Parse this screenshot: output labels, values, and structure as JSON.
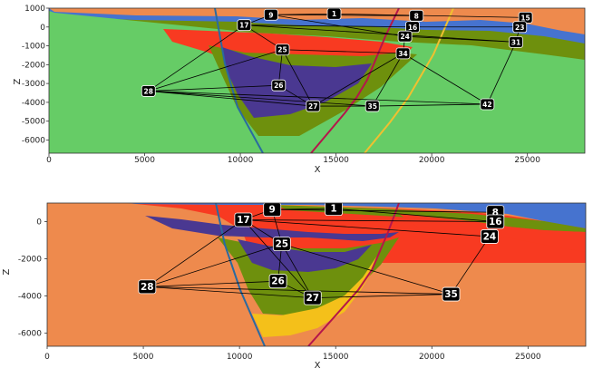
{
  "chart_data": [
    {
      "type": "other",
      "title": "",
      "xlabel": "X",
      "ylabel": "Z",
      "xlim": [
        0,
        28000
      ],
      "ylim": [
        -6700,
        1000
      ],
      "x_ticks": [
        "0",
        "5000",
        "10000",
        "15000",
        "20000",
        "25000"
      ],
      "y_ticks": [
        "1000",
        "0",
        "-1000",
        "-2000",
        "-3000",
        "-4000",
        "-5000",
        "-6000"
      ],
      "colors": {
        "background": "#ee8a4d",
        "blue": "#4673cf",
        "green": "#66cc66",
        "red": "#f83a21",
        "purple": "#4a3891",
        "olive": "#6e900d",
        "yellow": "#f4c01a",
        "fault_blue": "#2a6aa0",
        "fault_crimson": "#b5154b",
        "fault_yellow": "#f0c030"
      },
      "nodes": [
        {
          "id": "1",
          "x": 14900,
          "y": 700
        },
        {
          "id": "8",
          "x": 19200,
          "y": 600
        },
        {
          "id": "9",
          "x": 11600,
          "y": 650
        },
        {
          "id": "15",
          "x": 24900,
          "y": 500
        },
        {
          "id": "16",
          "x": 19000,
          "y": 0
        },
        {
          "id": "17",
          "x": 10200,
          "y": 100
        },
        {
          "id": "23",
          "x": 24600,
          "y": 0
        },
        {
          "id": "24",
          "x": 18600,
          "y": -500
        },
        {
          "id": "25",
          "x": 12200,
          "y": -1200
        },
        {
          "id": "26",
          "x": 12000,
          "y": -3100
        },
        {
          "id": "27",
          "x": 13800,
          "y": -4200
        },
        {
          "id": "28",
          "x": 5200,
          "y": -3400
        },
        {
          "id": "31",
          "x": 24400,
          "y": -800
        },
        {
          "id": "34",
          "x": 18500,
          "y": -1400
        },
        {
          "id": "35",
          "x": 16900,
          "y": -4200
        },
        {
          "id": "42",
          "x": 22900,
          "y": -4100
        }
      ],
      "edges": [
        [
          "28",
          "17"
        ],
        [
          "28",
          "25"
        ],
        [
          "28",
          "26"
        ],
        [
          "28",
          "27"
        ],
        [
          "28",
          "35"
        ],
        [
          "28",
          "42"
        ],
        [
          "17",
          "9"
        ],
        [
          "17",
          "16"
        ],
        [
          "17",
          "25"
        ],
        [
          "17",
          "31"
        ],
        [
          "9",
          "1"
        ],
        [
          "9",
          "8"
        ],
        [
          "9",
          "24"
        ],
        [
          "1",
          "15"
        ],
        [
          "8",
          "16"
        ],
        [
          "16",
          "23"
        ],
        [
          "16",
          "24"
        ],
        [
          "24",
          "34"
        ],
        [
          "24",
          "31"
        ],
        [
          "25",
          "26"
        ],
        [
          "25",
          "27"
        ],
        [
          "25",
          "34"
        ],
        [
          "34",
          "27"
        ],
        [
          "34",
          "35"
        ],
        [
          "34",
          "42"
        ],
        [
          "31",
          "42"
        ],
        [
          "26",
          "27"
        ],
        [
          "27",
          "35"
        ],
        [
          "35",
          "42"
        ],
        [
          "23",
          "31"
        ]
      ]
    },
    {
      "type": "other",
      "title": "",
      "xlabel": "X",
      "ylabel": "Z",
      "xlim": [
        0,
        28000
      ],
      "ylim": [
        -6700,
        1000
      ],
      "x_ticks": [
        "0",
        "5000",
        "10000",
        "15000",
        "20000",
        "25000"
      ],
      "y_ticks": [
        "0",
        "-2000",
        "-4000",
        "-6000"
      ],
      "nodes": [
        {
          "id": "1",
          "x": 14900,
          "y": 700
        },
        {
          "id": "8",
          "x": 23300,
          "y": 500
        },
        {
          "id": "9",
          "x": 11700,
          "y": 650
        },
        {
          "id": "16",
          "x": 23300,
          "y": 0
        },
        {
          "id": "17",
          "x": 10200,
          "y": 100
        },
        {
          "id": "24",
          "x": 23000,
          "y": -800
        },
        {
          "id": "25",
          "x": 12200,
          "y": -1200
        },
        {
          "id": "26",
          "x": 12000,
          "y": -3200
        },
        {
          "id": "27",
          "x": 13800,
          "y": -4100
        },
        {
          "id": "28",
          "x": 5200,
          "y": -3500
        },
        {
          "id": "35",
          "x": 21000,
          "y": -3900
        }
      ],
      "edges": [
        [
          "28",
          "17"
        ],
        [
          "28",
          "25"
        ],
        [
          "28",
          "26"
        ],
        [
          "28",
          "27"
        ],
        [
          "28",
          "35"
        ],
        [
          "17",
          "9"
        ],
        [
          "17",
          "16"
        ],
        [
          "17",
          "24"
        ],
        [
          "17",
          "25"
        ],
        [
          "17",
          "27"
        ],
        [
          "9",
          "1"
        ],
        [
          "9",
          "8"
        ],
        [
          "9",
          "25"
        ],
        [
          "1",
          "16"
        ],
        [
          "24",
          "35"
        ],
        [
          "25",
          "26"
        ],
        [
          "25",
          "27"
        ],
        [
          "25",
          "35"
        ],
        [
          "26",
          "27"
        ],
        [
          "27",
          "35"
        ]
      ]
    }
  ]
}
